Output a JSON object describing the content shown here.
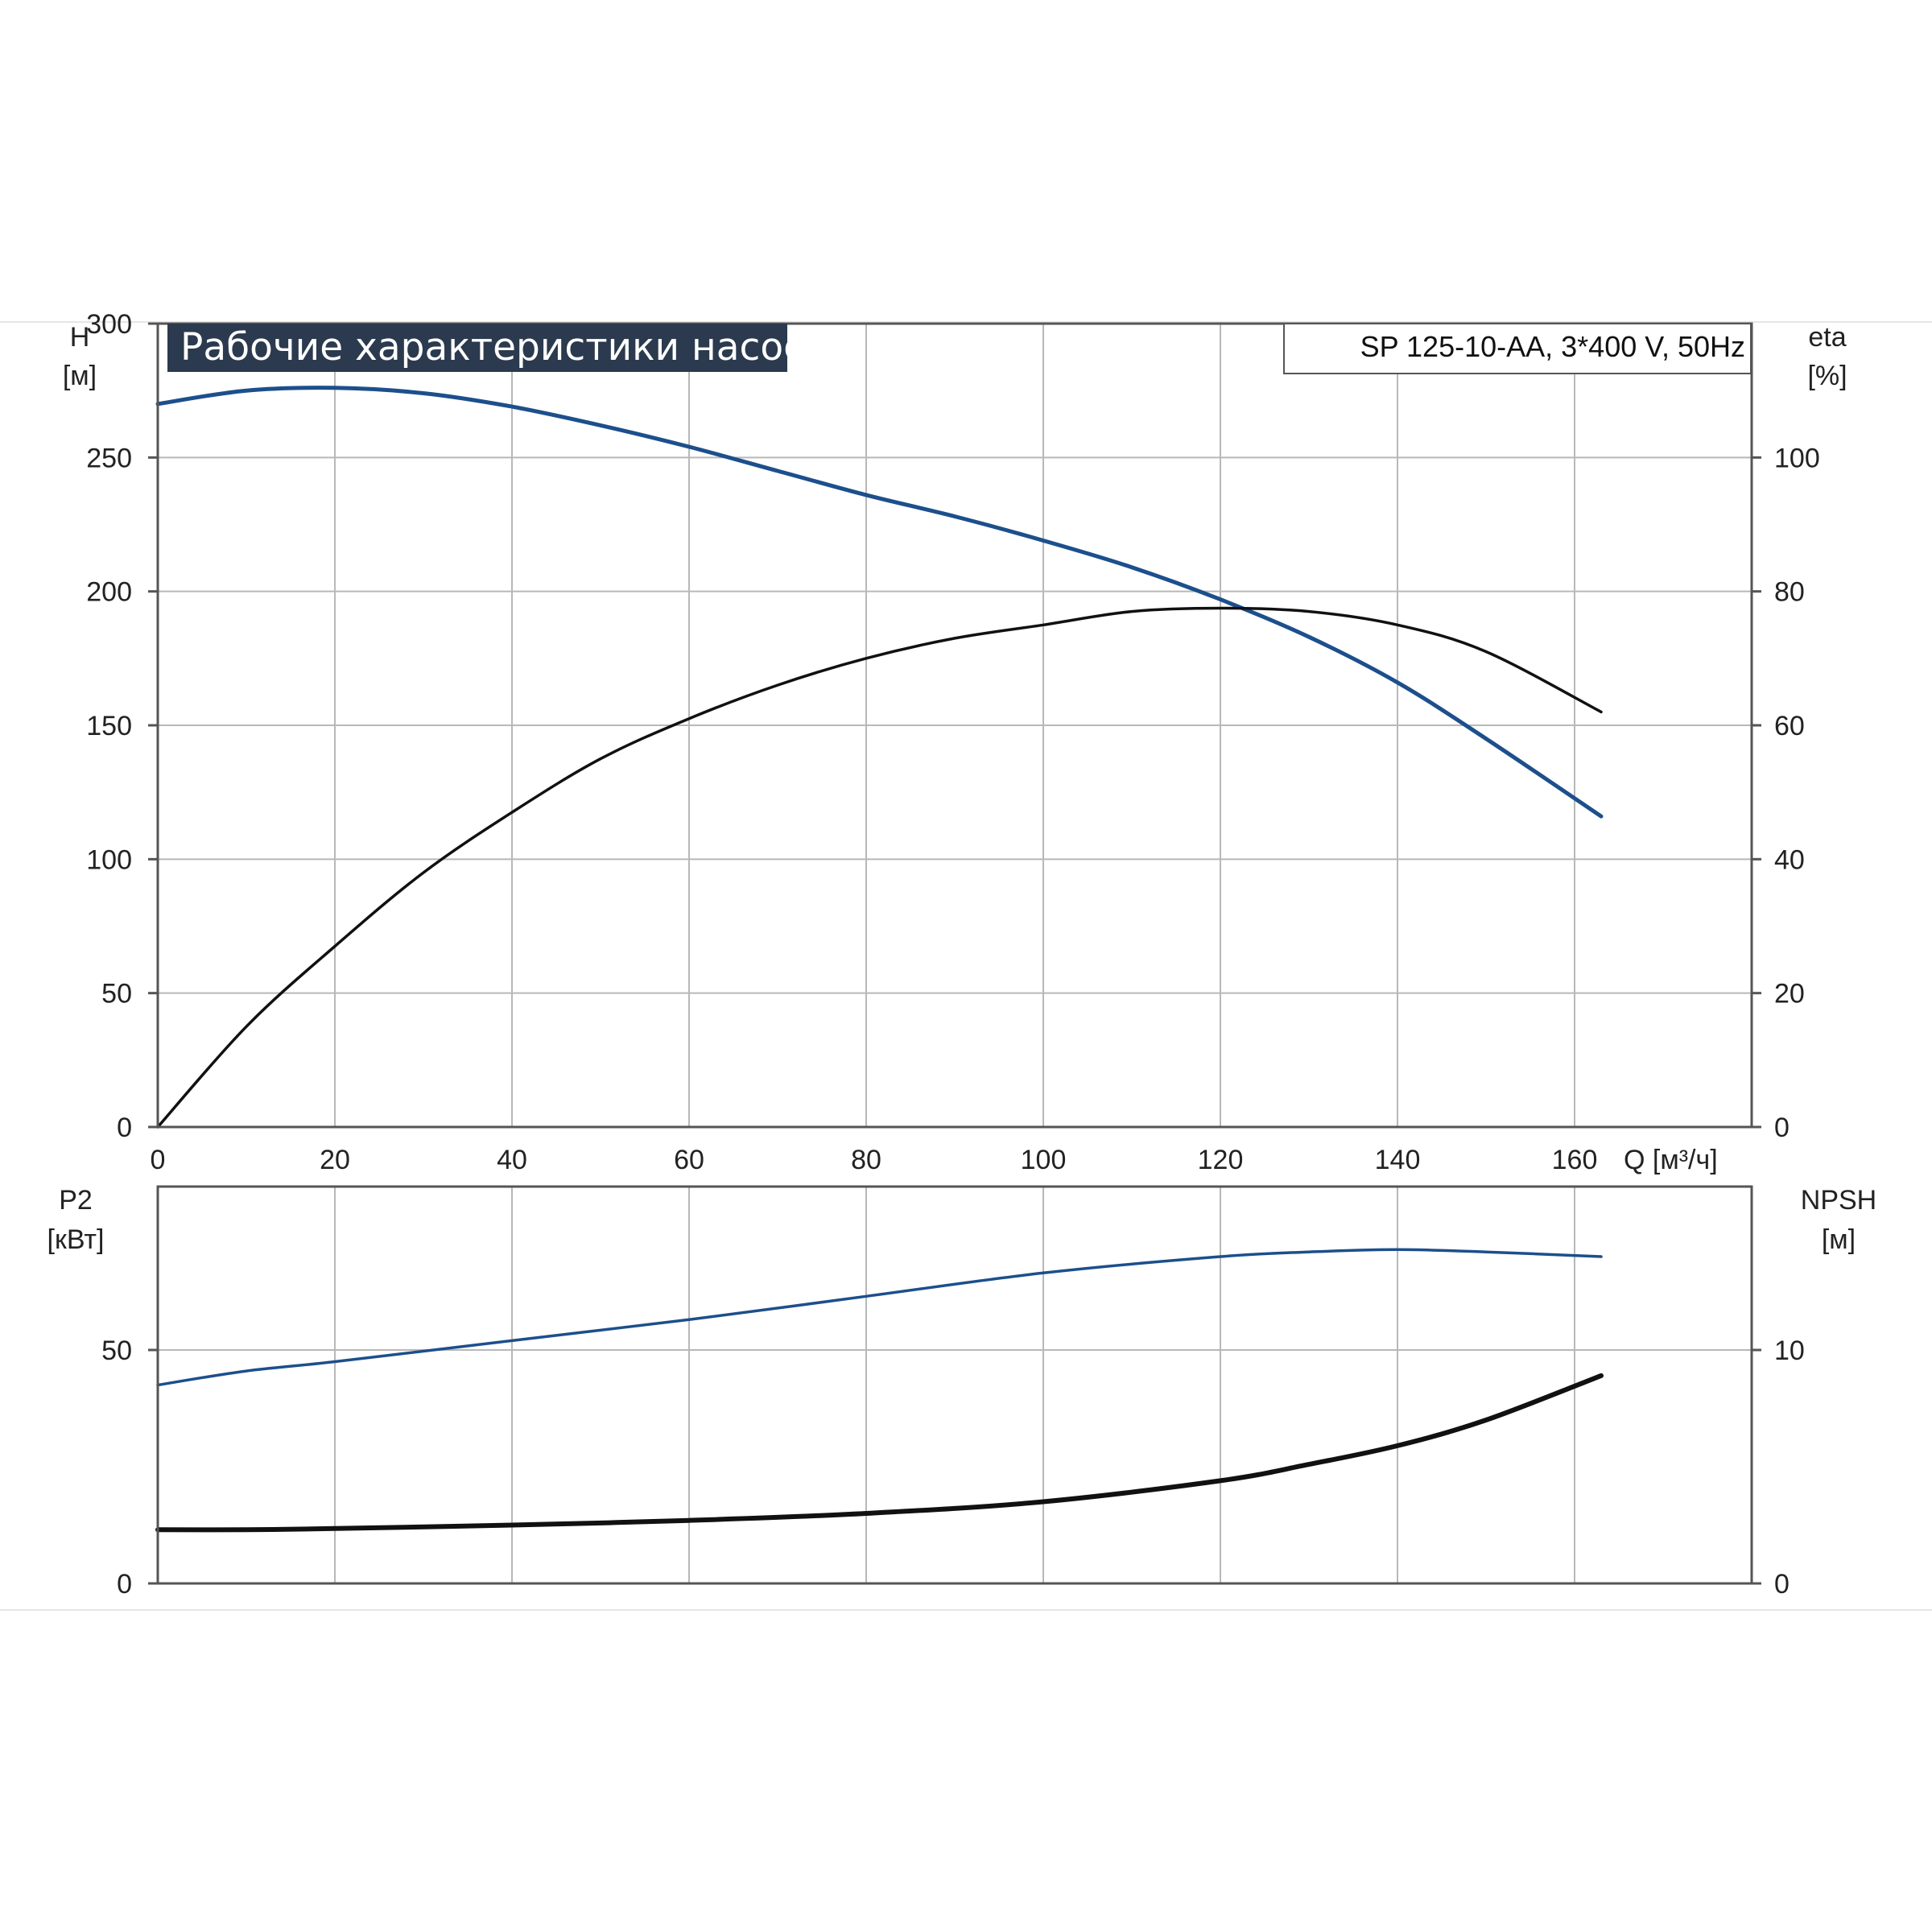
{
  "chart_data": {
    "type": "line",
    "title": "Рабочие характеристики насоса",
    "model": "SP 125-10-AA, 3*400 V, 50Hz",
    "colors": {
      "head": "#1c4f8c",
      "efficiency": "#111111",
      "p2": "#1c4f8c",
      "npsh": "#111111",
      "grid": "#b8b8b8",
      "title_bg": "#2b3a4e"
    },
    "x": {
      "label": "Q [м³/ч]",
      "range": [
        0,
        180
      ],
      "ticks": [
        "0",
        "20",
        "40",
        "60",
        "80",
        "100",
        "120",
        "140",
        "160"
      ]
    },
    "top": {
      "left_axis": {
        "name": "H",
        "unit": "[м]",
        "range": [
          0,
          300
        ],
        "ticks": [
          "0",
          "50",
          "100",
          "150",
          "200",
          "250",
          "300"
        ]
      },
      "right_axis": {
        "name": "eta",
        "unit": "[%]",
        "range": [
          0,
          120
        ],
        "ticks": [
          "0",
          "20",
          "40",
          "60",
          "80",
          "100"
        ]
      },
      "series": [
        {
          "key": "head",
          "axis": "left",
          "x": [
            0,
            10,
            20,
            30,
            40,
            50,
            60,
            70,
            80,
            90,
            100,
            110,
            120,
            130,
            140,
            150,
            163
          ],
          "y": [
            270,
            275,
            276,
            274,
            269,
            262,
            254,
            245,
            236,
            228,
            219,
            209,
            197,
            183,
            166,
            145,
            116
          ]
        },
        {
          "key": "efficiency",
          "axis": "right",
          "x": [
            0,
            10,
            20,
            30,
            40,
            50,
            60,
            70,
            80,
            90,
            100,
            110,
            120,
            130,
            140,
            150,
            163
          ],
          "y": [
            0,
            15,
            27,
            38,
            47,
            55,
            61,
            66,
            70,
            73,
            75,
            77,
            77.5,
            77,
            75,
            71,
            62
          ]
        }
      ]
    },
    "bottom": {
      "left_axis": {
        "name": "P2",
        "unit": "[кВт]",
        "range": [
          0,
          85
        ],
        "ticks": [
          "0",
          "50"
        ]
      },
      "right_axis": {
        "name": "NPSH",
        "unit": "[м]",
        "range": [
          0,
          17
        ],
        "ticks": [
          "0",
          "10"
        ]
      },
      "series": [
        {
          "key": "p2",
          "axis": "left",
          "x": [
            0,
            10,
            20,
            40,
            60,
            80,
            100,
            120,
            130,
            140,
            150,
            163
          ],
          "y": [
            42.5,
            45.5,
            47.5,
            52,
            56.5,
            61.5,
            66.5,
            70,
            71,
            71.5,
            71,
            70
          ]
        },
        {
          "key": "npsh",
          "axis": "right",
          "x": [
            0,
            10,
            20,
            40,
            60,
            80,
            100,
            120,
            130,
            140,
            150,
            163
          ],
          "y": [
            2.3,
            2.3,
            2.35,
            2.5,
            2.7,
            3.0,
            3.5,
            4.4,
            5.1,
            5.9,
            7.0,
            8.9
          ]
        }
      ]
    }
  }
}
